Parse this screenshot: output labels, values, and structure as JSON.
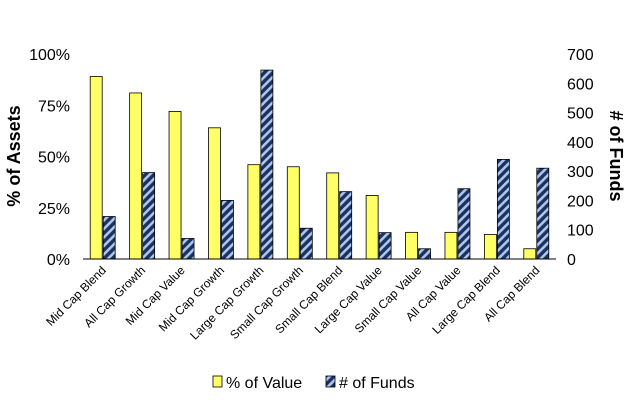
{
  "chart_data": {
    "type": "bar",
    "categories": [
      "Mid Cap Blend",
      "All Cap Growth",
      "Mid Cap Value",
      "Mid Cap Growth",
      "Large Cap Growth",
      "Small Cap Growth",
      "Small Cap Blend",
      "Large Cap Value",
      "Small Cap Value",
      "All Cap Value",
      "Large Cap Blend",
      "All Cap Blend"
    ],
    "series": [
      {
        "name": "% of Value",
        "axis": "left",
        "color": "#ffff66",
        "pattern": "solid",
        "values": [
          89,
          81,
          72,
          64,
          46,
          45,
          42,
          31,
          13,
          13,
          12,
          5
        ]
      },
      {
        "name": "# of Funds",
        "axis": "right",
        "color": "#1f2f5f",
        "pattern": "diagonal-stripes-light-blue",
        "values": [
          145,
          295,
          70,
          200,
          645,
          105,
          230,
          90,
          35,
          240,
          340,
          310
        ]
      }
    ],
    "ylabel": "% of Assets",
    "ylabel_right": "# of Funds",
    "ylim": [
      0,
      100
    ],
    "ylim_right": [
      0,
      700
    ],
    "yticks": [
      "0%",
      "25%",
      "50%",
      "75%",
      "100%"
    ],
    "yticks_right": [
      "0",
      "100",
      "200",
      "300",
      "400",
      "500",
      "600",
      "700"
    ],
    "grid": false,
    "legend_position": "bottom"
  }
}
